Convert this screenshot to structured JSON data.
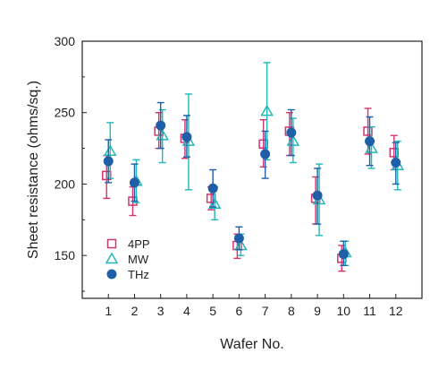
{
  "chart_data": {
    "type": "scatter",
    "title": "",
    "xlabel": "Wafer No.",
    "ylabel": "Sheet resistance (ohms/sq.)",
    "x": [
      1,
      2,
      3,
      4,
      5,
      6,
      7,
      8,
      9,
      10,
      11,
      12
    ],
    "xticks": [
      "1",
      "2",
      "3",
      "4",
      "5",
      "6",
      "7",
      "8",
      "9",
      "10",
      "11",
      "12"
    ],
    "xlim": [
      0,
      13
    ],
    "ylim": [
      120,
      300
    ],
    "yticks": [
      "150",
      "200",
      "250",
      "300"
    ],
    "grid": false,
    "legend_position": "bottom-left",
    "series": [
      {
        "name": "4PP",
        "marker": "open-square",
        "color": "#d6336c",
        "values": [
          206,
          188,
          237,
          232,
          190,
          157,
          228,
          237,
          190,
          148,
          237,
          222
        ],
        "err_low": [
          190,
          178,
          225,
          218,
          182,
          148,
          212,
          220,
          172,
          139,
          221,
          210
        ],
        "err_high": [
          220,
          198,
          250,
          245,
          198,
          165,
          245,
          250,
          205,
          157,
          253,
          234
        ]
      },
      {
        "name": "MW",
        "marker": "open-triangle",
        "color": "#20b8b8",
        "values": [
          223,
          202,
          234,
          230,
          186,
          157,
          251,
          230,
          189,
          152,
          225,
          213
        ],
        "err_low": [
          204,
          187,
          215,
          196,
          175,
          150,
          217,
          215,
          164,
          143,
          211,
          196
        ],
        "err_high": [
          243,
          217,
          252,
          263,
          198,
          165,
          285,
          246,
          214,
          160,
          240,
          230
        ]
      },
      {
        "name": "THz",
        "marker": "filled-circle",
        "color": "#1f5fa8",
        "values": [
          216,
          201,
          241,
          233,
          197,
          162,
          221,
          236,
          192,
          151,
          230,
          215
        ],
        "err_low": [
          201,
          188,
          225,
          219,
          184,
          154,
          204,
          220,
          172,
          143,
          213,
          200
        ],
        "err_high": [
          231,
          214,
          257,
          248,
          210,
          170,
          237,
          252,
          211,
          160,
          247,
          229
        ]
      }
    ]
  }
}
